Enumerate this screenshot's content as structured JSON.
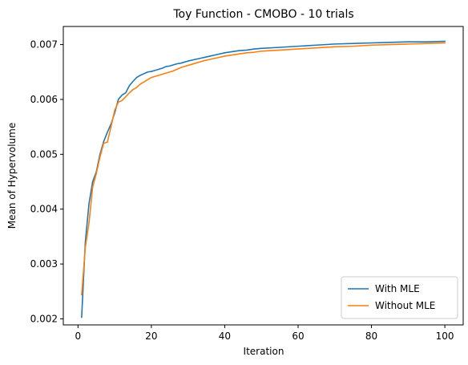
{
  "chart_data": {
    "type": "line",
    "title": "Toy Function - CMOBO - 10 trials",
    "xlabel": "Iteration",
    "ylabel": "Mean of Hypervolume",
    "xlim": [
      -4,
      105
    ],
    "ylim": [
      0.00189,
      0.00733
    ],
    "xticks": [
      0,
      20,
      40,
      60,
      80,
      100
    ],
    "xtick_labels": [
      "0",
      "20",
      "40",
      "60",
      "80",
      "100"
    ],
    "yticks": [
      0.002,
      0.003,
      0.004,
      0.005,
      0.006,
      0.007
    ],
    "ytick_labels": [
      "0.002",
      "0.003",
      "0.004",
      "0.005",
      "0.006",
      "0.007"
    ],
    "grid": false,
    "legend_position": "lower-right",
    "series": [
      {
        "name": "With MLE",
        "color": "#1f77b4",
        "x": [
          1,
          2,
          3,
          4,
          5,
          6,
          7,
          8,
          9,
          10,
          11,
          12,
          13,
          14,
          15,
          16,
          17,
          18,
          19,
          20,
          21,
          22,
          23,
          24,
          25,
          26,
          27,
          28,
          29,
          30,
          32,
          34,
          36,
          38,
          40,
          42,
          44,
          46,
          48,
          50,
          55,
          60,
          65,
          70,
          75,
          80,
          85,
          90,
          95,
          100
        ],
        "y": [
          0.00203,
          0.0034,
          0.0041,
          0.0045,
          0.00468,
          0.005,
          0.00523,
          0.0054,
          0.00555,
          0.00575,
          0.006,
          0.00608,
          0.00612,
          0.00625,
          0.00633,
          0.0064,
          0.00644,
          0.00647,
          0.0065,
          0.00651,
          0.00653,
          0.00655,
          0.00657,
          0.0066,
          0.00661,
          0.00663,
          0.00665,
          0.00666,
          0.00668,
          0.0067,
          0.00673,
          0.00676,
          0.00679,
          0.00682,
          0.00685,
          0.00687,
          0.00689,
          0.0069,
          0.00692,
          0.00693,
          0.00695,
          0.00697,
          0.00699,
          0.00701,
          0.00702,
          0.00703,
          0.00704,
          0.00705,
          0.00705,
          0.00706
        ]
      },
      {
        "name": "Without MLE",
        "color": "#ff7f0e",
        "x": [
          1,
          2,
          3,
          4,
          5,
          6,
          7,
          8,
          9,
          10,
          11,
          12,
          13,
          14,
          15,
          16,
          17,
          18,
          19,
          20,
          21,
          22,
          23,
          24,
          25,
          26,
          27,
          28,
          29,
          30,
          32,
          34,
          36,
          38,
          40,
          42,
          44,
          46,
          48,
          50,
          55,
          60,
          65,
          70,
          75,
          80,
          85,
          90,
          95,
          100
        ],
        "y": [
          0.00244,
          0.0033,
          0.00375,
          0.0044,
          0.00465,
          0.00495,
          0.0052,
          0.00522,
          0.0055,
          0.0058,
          0.00595,
          0.00598,
          0.00605,
          0.00612,
          0.00618,
          0.00622,
          0.00628,
          0.00632,
          0.00636,
          0.0064,
          0.00642,
          0.00644,
          0.00646,
          0.00648,
          0.0065,
          0.00652,
          0.00655,
          0.00658,
          0.0066,
          0.00662,
          0.00666,
          0.0067,
          0.00673,
          0.00676,
          0.00679,
          0.00681,
          0.00683,
          0.00685,
          0.00686,
          0.00688,
          0.0069,
          0.00692,
          0.00694,
          0.00696,
          0.00697,
          0.00699,
          0.007,
          0.00701,
          0.00702,
          0.00703
        ]
      }
    ]
  }
}
